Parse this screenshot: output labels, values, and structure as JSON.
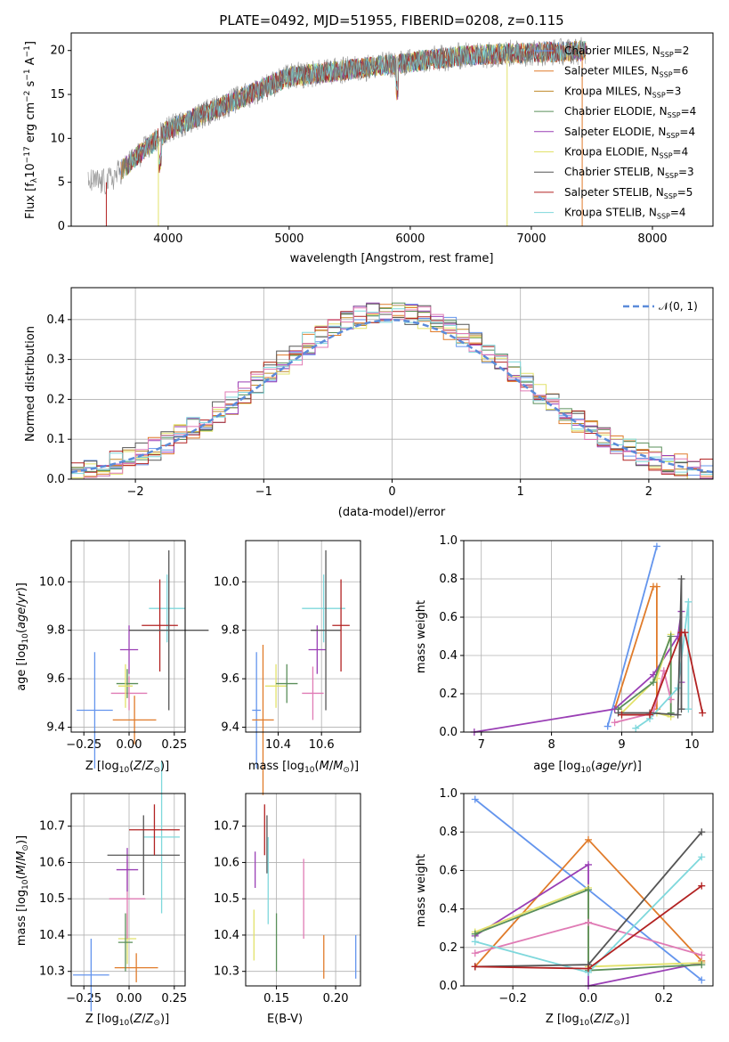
{
  "title": "PLATE=0492, MJD=51955, FIBERID=0208, z=0.115",
  "panels": {
    "spectrum": {
      "type": "line",
      "xlabel": "wavelength [Angstrom, rest frame]",
      "ylabel": "Flux [fλ10⁻¹⁷ erg cm⁻² s⁻¹ A⁻¹]",
      "xlim": [
        3200,
        8500
      ],
      "ylim": [
        0,
        22
      ],
      "xticks": [
        "4000",
        "5000",
        "6000",
        "7000",
        "8000"
      ],
      "yticks": [
        "0",
        "5",
        "10",
        "15",
        "20"
      ],
      "legend": [
        {
          "label": "Chabrier MILES, N_SSP=2",
          "color": "#6495ed"
        },
        {
          "label": "Salpeter MILES, N_SSP=6",
          "color": "#e07b2a"
        },
        {
          "label": "Kroupa MILES, N_SSP=3",
          "color": "#c08a2a"
        },
        {
          "label": "Chabrier ELODIE, N_SSP=4",
          "color": "#5a8f5a"
        },
        {
          "label": "Salpeter ELODIE, N_SSP=4",
          "color": "#9a3fb5"
        },
        {
          "label": "Kroupa ELODIE, N_SSP=4",
          "color": "#e2e26a"
        },
        {
          "label": "Chabrier STELIB, N_SSP=3",
          "color": "#555555"
        },
        {
          "label": "Salpeter STELIB, N_SSP=5",
          "color": "#b22222"
        },
        {
          "label": "Kroupa STELIB, N_SSP=4",
          "color": "#7fd8dc"
        }
      ]
    },
    "hist": {
      "type": "histogram",
      "xlabel": "(data-model)/error",
      "ylabel": "Normed distribution",
      "xlim": [
        -2.5,
        2.5
      ],
      "ylim": [
        0,
        0.48
      ],
      "xticks": [
        "−2",
        "−1",
        "0",
        "1",
        "2"
      ],
      "yticks": [
        "0.0",
        "0.1",
        "0.2",
        "0.3",
        "0.4"
      ],
      "legend": "𝒩(0, 1)"
    },
    "z_age": {
      "xlabel": "Z [log₁₀(Z/Z⊙)]",
      "ylabel": "age  [log₁₀(age/yr)]",
      "xticks": [
        "−0.25",
        "0.00",
        "0.25"
      ],
      "yticks": [
        "9.4",
        "9.6",
        "9.8",
        "10.0"
      ]
    },
    "mass_age": {
      "xlabel": "mass [log₁₀(M/M⊙)]",
      "xticks": [
        "10.4",
        "10.6"
      ],
      "yticks": [
        "9.4",
        "9.6",
        "9.8",
        "10.0"
      ]
    },
    "age_weight": {
      "xlabel": "age  [log₁₀(age/yr)]",
      "ylabel": "mass weight",
      "xticks": [
        "7",
        "8",
        "9",
        "10"
      ],
      "yticks": [
        "0.0",
        "0.2",
        "0.4",
        "0.6",
        "0.8",
        "1.0"
      ]
    },
    "z_mass": {
      "xlabel": "Z [log₁₀(Z/Z⊙)]",
      "ylabel": "mass [log₁₀(M/M⊙)]",
      "xticks": [
        "−0.25",
        "0.00",
        "0.25"
      ],
      "yticks": [
        "10.3",
        "10.4",
        "10.5",
        "10.6",
        "10.7"
      ]
    },
    "ebv_mass": {
      "xlabel": "E(B-V)",
      "xticks": [
        "0.15",
        "0.20"
      ],
      "yticks": [
        "10.3",
        "10.4",
        "10.5",
        "10.6",
        "10.7"
      ]
    },
    "z_weight": {
      "xlabel": "Z [log₁₀(Z/Z⊙)]",
      "ylabel": "mass weight",
      "xticks": [
        "−0.2",
        "0.0",
        "0.2"
      ],
      "yticks": [
        "0.0",
        "0.2",
        "0.4",
        "0.6",
        "0.8",
        "1.0"
      ]
    }
  },
  "chart_data": [
    {
      "type": "scatter",
      "name": "z_age",
      "series": [
        {
          "color": "#6495ed",
          "x": -0.19,
          "y": 9.47,
          "xerr": 0.1,
          "yerr": 0.24
        },
        {
          "color": "#e07b2a",
          "x": 0.03,
          "y": 9.43,
          "xerr": 0.12,
          "yerr": 0.1
        },
        {
          "color": "#e07bb5",
          "x": 0.0,
          "y": 9.54,
          "xerr": 0.1,
          "yerr": 0.07
        },
        {
          "color": "#5a8f5a",
          "x": -0.01,
          "y": 9.58,
          "xerr": 0.06,
          "yerr": 0.06
        },
        {
          "color": "#e2e26a",
          "x": -0.02,
          "y": 9.57,
          "xerr": 0.04,
          "yerr": 0.09
        },
        {
          "color": "#9a3fb5",
          "x": 0.0,
          "y": 9.72,
          "xerr": 0.05,
          "yerr": 0.1
        },
        {
          "color": "#7fd8dc",
          "x": 0.21,
          "y": 9.89,
          "xerr": 0.1,
          "yerr": 0.14
        },
        {
          "color": "#b22222",
          "x": 0.17,
          "y": 9.82,
          "xerr": 0.1,
          "yerr": 0.19
        },
        {
          "color": "#555555",
          "x": 0.22,
          "y": 9.8,
          "xerr": 0.22,
          "yerr": 0.33
        }
      ]
    },
    {
      "type": "scatter",
      "name": "mass_age",
      "series": [
        {
          "color": "#6495ed",
          "x": 10.3,
          "y": 9.47,
          "xerr": 0.02,
          "yerr": 0.24
        },
        {
          "color": "#e07b2a",
          "x": 10.33,
          "y": 9.43,
          "xerr": 0.05,
          "yerr": 0.31
        },
        {
          "color": "#e2e26a",
          "x": 10.39,
          "y": 9.57,
          "xerr": 0.05,
          "yerr": 0.09
        },
        {
          "color": "#5a8f5a",
          "x": 10.44,
          "y": 9.58,
          "xerr": 0.05,
          "yerr": 0.08
        },
        {
          "color": "#e07bb5",
          "x": 10.56,
          "y": 9.54,
          "xerr": 0.05,
          "yerr": 0.11
        },
        {
          "color": "#9a3fb5",
          "x": 10.58,
          "y": 9.72,
          "xerr": 0.04,
          "yerr": 0.1
        },
        {
          "color": "#7fd8dc",
          "x": 10.61,
          "y": 9.89,
          "xerr": 0.1,
          "yerr": 0.14
        },
        {
          "color": "#555555",
          "x": 10.62,
          "y": 9.8,
          "xerr": 0.07,
          "yerr": 0.33
        },
        {
          "color": "#b22222",
          "x": 10.69,
          "y": 9.82,
          "xerr": 0.04,
          "yerr": 0.19
        }
      ]
    },
    {
      "type": "line",
      "name": "age_weight",
      "series": [
        {
          "color": "#6495ed",
          "x": [
            8.8,
            9.5
          ],
          "y": [
            0.03,
            0.97
          ]
        },
        {
          "color": "#e07b2a",
          "x": [
            8.9,
            9.45,
            9.5,
            9.5
          ],
          "y": [
            0.12,
            0.76,
            0.76,
            0.12
          ]
        },
        {
          "color": "#9a3fb5",
          "x": [
            6.9,
            8.9,
            9.45,
            9.8,
            9.85,
            9.85
          ],
          "y": [
            0.0,
            0.12,
            0.3,
            0.5,
            0.63,
            0.26
          ]
        },
        {
          "color": "#e2e26a",
          "x": [
            9.0,
            9.5,
            9.7,
            9.7,
            9.5
          ],
          "y": [
            0.1,
            0.28,
            0.51,
            0.08,
            0.1
          ]
        },
        {
          "color": "#5a8f5a",
          "x": [
            8.95,
            9.45,
            9.7,
            9.7
          ],
          "y": [
            0.12,
            0.26,
            0.5,
            0.1
          ]
        },
        {
          "color": "#e07bb5",
          "x": [
            8.9,
            9.45,
            9.6,
            9.7
          ],
          "y": [
            0.05,
            0.1,
            0.32,
            0.17
          ]
        },
        {
          "color": "#7fd8dc",
          "x": [
            9.2,
            9.4,
            9.8,
            9.95,
            9.95
          ],
          "y": [
            0.02,
            0.07,
            0.23,
            0.68,
            0.12
          ]
        },
        {
          "color": "#555555",
          "x": [
            8.95,
            9.4,
            9.8,
            9.85,
            9.85
          ],
          "y": [
            0.1,
            0.1,
            0.09,
            0.8,
            0.12
          ]
        },
        {
          "color": "#b22222",
          "x": [
            9.0,
            9.4,
            9.85,
            9.9,
            10.15
          ],
          "y": [
            0.09,
            0.09,
            0.52,
            0.52,
            0.1
          ]
        }
      ]
    },
    {
      "type": "scatter",
      "name": "z_mass",
      "series": [
        {
          "color": "#6495ed",
          "x": -0.21,
          "y": 10.29,
          "xerr": 0.1,
          "yerr": 0.1
        },
        {
          "color": "#e07b2a",
          "x": 0.04,
          "y": 10.31,
          "xerr": 0.12,
          "yerr": 0.04
        },
        {
          "color": "#e2e26a",
          "x": -0.01,
          "y": 10.39,
          "xerr": 0.05,
          "yerr": 0.07
        },
        {
          "color": "#5a8f5a",
          "x": -0.02,
          "y": 10.38,
          "xerr": 0.04,
          "yerr": 0.08
        },
        {
          "color": "#e07bb5",
          "x": -0.01,
          "y": 10.5,
          "xerr": 0.1,
          "yerr": 0.11
        },
        {
          "color": "#9a3fb5",
          "x": -0.01,
          "y": 10.58,
          "xerr": 0.06,
          "yerr": 0.06
        },
        {
          "color": "#7fd8dc",
          "x": 0.18,
          "y": 10.67,
          "xerr": 0.1,
          "yerr": 0.21
        },
        {
          "color": "#555555",
          "x": 0.08,
          "y": 10.62,
          "xerr": 0.2,
          "yerr": 0.11
        },
        {
          "color": "#b22222",
          "x": 0.14,
          "y": 10.69,
          "xerr": 0.14,
          "yerr": 0.07
        }
      ]
    },
    {
      "type": "scatter",
      "name": "ebv_mass",
      "series": [
        {
          "color": "#e2e26a",
          "x": 0.131,
          "y": 10.4,
          "xerr": 0,
          "yerr": 0.07
        },
        {
          "color": "#9a3fb5",
          "x": 0.132,
          "y": 10.58,
          "xerr": 0,
          "yerr": 0.05
        },
        {
          "color": "#b22222",
          "x": 0.14,
          "y": 10.69,
          "xerr": 0,
          "yerr": 0.07
        },
        {
          "color": "#555555",
          "x": 0.142,
          "y": 10.65,
          "xerr": 0,
          "yerr": 0.08
        },
        {
          "color": "#7fd8dc",
          "x": 0.143,
          "y": 10.55,
          "xerr": 0,
          "yerr": 0.12
        },
        {
          "color": "#5a8f5a",
          "x": 0.15,
          "y": 10.38,
          "xerr": 0,
          "yerr": 0.08
        },
        {
          "color": "#e07bb5",
          "x": 0.173,
          "y": 10.5,
          "xerr": 0,
          "yerr": 0.11
        },
        {
          "color": "#e07b2a",
          "x": 0.19,
          "y": 10.34,
          "xerr": 0,
          "yerr": 0.06
        },
        {
          "color": "#6495ed",
          "x": 0.217,
          "y": 10.34,
          "xerr": 0,
          "yerr": 0.06
        }
      ]
    },
    {
      "type": "line",
      "name": "z_weight",
      "series": [
        {
          "color": "#6495ed",
          "x": [
            -0.3,
            0.3
          ],
          "y": [
            0.97,
            0.03
          ]
        },
        {
          "color": "#e07b2a",
          "x": [
            -0.3,
            0.0,
            0.3
          ],
          "y": [
            0.1,
            0.76,
            0.13
          ]
        },
        {
          "color": "#9a3fb5",
          "x": [
            -0.3,
            0.0,
            0.0,
            0.3
          ],
          "y": [
            0.26,
            0.63,
            0.0,
            0.12
          ]
        },
        {
          "color": "#e2e26a",
          "x": [
            -0.3,
            0.0,
            0.0,
            0.3
          ],
          "y": [
            0.28,
            0.51,
            0.1,
            0.12
          ]
        },
        {
          "color": "#5a8f5a",
          "x": [
            -0.3,
            0.0,
            0.0,
            0.3
          ],
          "y": [
            0.27,
            0.5,
            0.08,
            0.11
          ]
        },
        {
          "color": "#e07bb5",
          "x": [
            -0.3,
            0.0,
            0.3
          ],
          "y": [
            0.17,
            0.33,
            0.16
          ]
        },
        {
          "color": "#7fd8dc",
          "x": [
            -0.3,
            0.0,
            0.3
          ],
          "y": [
            0.23,
            0.07,
            0.67
          ]
        },
        {
          "color": "#555555",
          "x": [
            -0.3,
            0.0,
            0.3
          ],
          "y": [
            0.1,
            0.11,
            0.8
          ]
        },
        {
          "color": "#b22222",
          "x": [
            -0.3,
            0.0,
            0.3
          ],
          "y": [
            0.1,
            0.09,
            0.52
          ]
        }
      ]
    }
  ]
}
